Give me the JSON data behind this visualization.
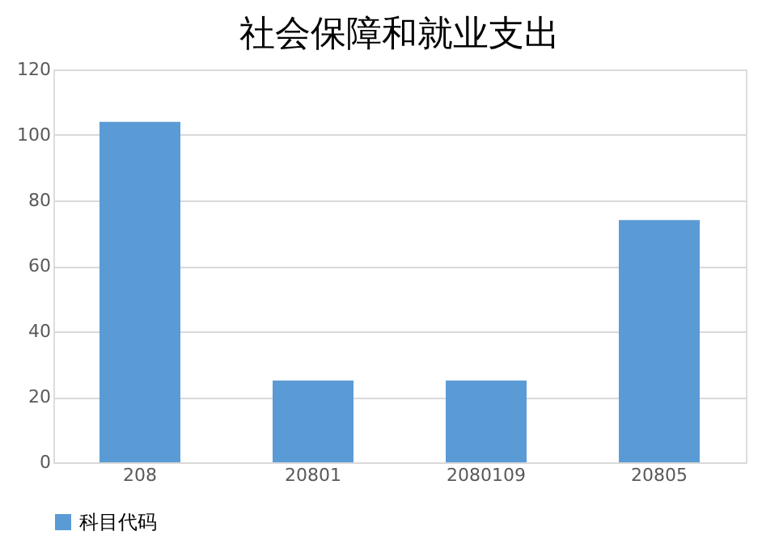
{
  "chart_data": {
    "type": "bar",
    "title": "社会保障和就业支出",
    "categories": [
      "208",
      "20801",
      "2080109",
      "20805"
    ],
    "series": [
      {
        "name": "科目代码",
        "color": "#5b9bd5",
        "values": [
          104,
          25,
          25,
          74
        ]
      }
    ],
    "ylim": [
      0,
      120
    ],
    "yticks": [
      0,
      20,
      40,
      60,
      80,
      100,
      120
    ],
    "grid": "y",
    "legend": "bottom"
  }
}
